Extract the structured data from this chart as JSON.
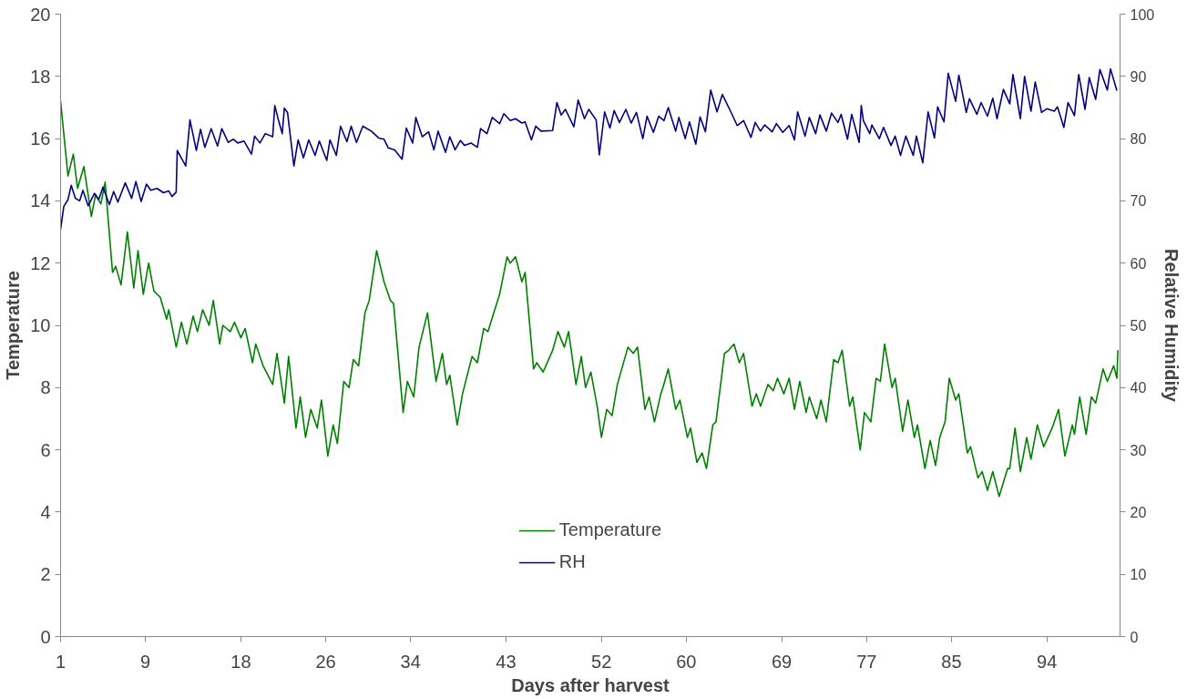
{
  "chart_data": {
    "type": "line",
    "xlabel": "Days after harvest",
    "ylabel": "Temperature",
    "y2label": "Relative Humidity",
    "xlim": [
      1,
      100.9
    ],
    "xticks": [
      1,
      9,
      18,
      26,
      34,
      43,
      52,
      60,
      69,
      77,
      85,
      94
    ],
    "ylim": [
      0,
      20
    ],
    "yticks": [
      0,
      2,
      4,
      6,
      8,
      10,
      12,
      14,
      16,
      18,
      20
    ],
    "y2lim": [
      0,
      100
    ],
    "y2ticks": [
      0,
      10,
      20,
      30,
      40,
      50,
      60,
      70,
      80,
      90,
      100
    ],
    "legend": "bottom",
    "series": [
      {
        "name": "Temperature",
        "color": "#008000",
        "x": [
          1.0,
          1.7,
          2.2,
          2.6,
          3.2,
          3.9,
          4.3,
          4.8,
          5.2,
          5.9,
          6.2,
          6.7,
          7.3,
          7.9,
          8.3,
          8.8,
          9.3,
          9.8,
          10.4,
          11.0,
          11.2,
          11.9,
          12.4,
          12.9,
          13.5,
          13.9,
          14.4,
          15.0,
          15.4,
          16.0,
          16.3,
          17.0,
          17.4,
          18.0,
          18.4,
          19.1,
          19.4,
          20.1,
          21.0,
          21.4,
          22.1,
          22.5,
          23.2,
          23.6,
          24.1,
          24.6,
          25.2,
          25.6,
          26.2,
          26.7,
          27.1,
          27.7,
          28.2,
          28.6,
          29.1,
          29.7,
          30.1,
          30.8,
          31.5,
          32.1,
          32.4,
          33.3,
          33.7,
          34.3,
          34.8,
          35.6,
          36.4,
          37.0,
          37.4,
          37.7,
          38.4,
          38.9,
          39.8,
          40.3,
          40.9,
          41.3,
          42.4,
          43.1,
          43.4,
          43.9,
          44.5,
          44.8,
          45.6,
          45.9,
          46.5,
          47.4,
          47.9,
          48.5,
          48.9,
          49.6,
          50.1,
          50.5,
          51.0,
          51.6,
          52.0,
          52.5,
          53.0,
          53.5,
          54.5,
          55.0,
          55.4,
          56.1,
          56.5,
          57.0,
          57.6,
          57.8,
          58.3,
          59.0,
          59.4,
          60.1,
          60.4,
          61.0,
          61.5,
          61.9,
          62.5,
          62.8,
          63.6,
          64.0,
          64.5,
          65.0,
          65.4,
          66.2,
          66.6,
          67.0,
          67.7,
          68.2,
          68.6,
          69.2,
          69.7,
          70.2,
          70.7,
          71.3,
          71.6,
          72.3,
          72.7,
          73.2,
          73.9,
          74.3,
          74.7,
          75.4,
          75.7,
          76.4,
          76.8,
          77.4,
          77.9,
          78.3,
          78.7,
          79.4,
          79.7,
          80.4,
          80.9,
          81.5,
          81.8,
          82.5,
          83.0,
          83.5,
          83.9,
          84.4,
          84.8,
          85.4,
          85.7,
          86.5,
          86.8,
          87.5,
          87.9,
          88.4,
          88.9,
          89.5,
          90.3,
          90.5,
          91.0,
          91.5,
          92.1,
          92.5,
          93.1,
          93.7,
          94.5,
          95.1,
          95.7,
          96.4,
          96.6,
          97.1,
          97.7,
          98.2,
          98.6,
          99.3,
          99.7,
          100.3,
          100.6,
          100.7
        ],
        "values": [
          17.2,
          14.8,
          15.5,
          14.4,
          15.1,
          13.5,
          14.2,
          13.9,
          14.6,
          11.7,
          11.9,
          11.3,
          13.0,
          11.2,
          12.4,
          11.0,
          12.0,
          11.1,
          10.9,
          10.2,
          10.5,
          9.3,
          10.1,
          9.4,
          10.3,
          9.8,
          10.5,
          10.0,
          10.8,
          9.4,
          10.0,
          9.8,
          10.1,
          9.6,
          9.9,
          8.8,
          9.4,
          8.7,
          8.1,
          9.1,
          7.5,
          9.0,
          6.7,
          7.7,
          6.4,
          7.3,
          6.7,
          7.6,
          5.8,
          6.8,
          6.2,
          8.2,
          8.0,
          8.9,
          8.7,
          10.4,
          10.8,
          12.4,
          11.4,
          10.8,
          10.7,
          7.2,
          8.2,
          7.7,
          9.3,
          10.4,
          8.2,
          9.1,
          8.1,
          8.4,
          6.8,
          7.8,
          9.0,
          8.8,
          9.9,
          9.8,
          11.0,
          12.2,
          12.0,
          12.2,
          11.4,
          11.7,
          8.6,
          8.8,
          8.5,
          9.2,
          9.8,
          9.3,
          9.8,
          8.1,
          9.0,
          8.0,
          8.5,
          7.4,
          6.4,
          7.3,
          7.1,
          8.1,
          9.3,
          9.1,
          9.3,
          7.3,
          7.7,
          6.9,
          7.8,
          8.0,
          8.6,
          7.3,
          7.6,
          6.4,
          6.7,
          5.6,
          5.9,
          5.4,
          6.8,
          6.9,
          9.1,
          9.2,
          9.4,
          8.8,
          9.1,
          7.4,
          7.8,
          7.4,
          8.1,
          7.9,
          8.3,
          7.8,
          8.3,
          7.3,
          8.2,
          7.2,
          7.7,
          7.0,
          7.6,
          6.9,
          8.9,
          8.8,
          9.2,
          7.4,
          7.7,
          6.0,
          7.2,
          6.9,
          8.3,
          8.2,
          9.4,
          8.0,
          8.3,
          6.6,
          7.6,
          6.4,
          6.8,
          5.4,
          6.3,
          5.5,
          6.4,
          6.9,
          8.3,
          7.6,
          7.8,
          5.9,
          6.1,
          5.1,
          5.3,
          4.7,
          5.3,
          4.5,
          5.4,
          5.4,
          6.7,
          5.3,
          6.4,
          5.7,
          6.8,
          6.1,
          6.7,
          7.3,
          5.8,
          6.8,
          6.5,
          7.7,
          6.5,
          7.7,
          7.5,
          8.6,
          8.2,
          8.7,
          8.3,
          9.2
        ]
      },
      {
        "name": "RH",
        "color": "#000080",
        "axis": "y2",
        "x": [
          1.0,
          1.3,
          1.7,
          2.0,
          2.4,
          2.8,
          3.1,
          3.6,
          4.2,
          4.6,
          5.0,
          5.6,
          6.0,
          6.4,
          7.1,
          7.7,
          8.1,
          8.6,
          9.1,
          9.5,
          10.1,
          10.7,
          11.2,
          11.5,
          11.9,
          12.0,
          12.8,
          13.2,
          13.8,
          14.2,
          14.6,
          15.2,
          15.8,
          16.2,
          16.8,
          17.3,
          17.7,
          18.3,
          19.0,
          19.3,
          19.8,
          20.3,
          21.0,
          21.2,
          21.6,
          21.9,
          22.1,
          22.4,
          23.0,
          23.4,
          23.9,
          24.4,
          25.0,
          25.4,
          26.1,
          26.4,
          27.0,
          27.4,
          28.0,
          28.4,
          28.9,
          29.5,
          30.3,
          31.0,
          31.5,
          31.9,
          32.5,
          33.2,
          33.6,
          34.2,
          34.5,
          35.1,
          35.7,
          36.2,
          36.6,
          37.3,
          37.7,
          38.2,
          38.7,
          39.1,
          39.7,
          40.3,
          40.6,
          41.2,
          41.7,
          42.4,
          42.8,
          43.4,
          43.9,
          44.5,
          44.8,
          45.4,
          45.8,
          46.3,
          47.4,
          47.8,
          48.2,
          48.6,
          49.4,
          49.8,
          50.4,
          50.8,
          51.5,
          51.8,
          52.3,
          52.8,
          53.2,
          53.7,
          54.3,
          54.8,
          55.3,
          55.9,
          56.3,
          56.9,
          57.4,
          57.9,
          58.3,
          59.0,
          59.3,
          59.9,
          60.3,
          60.9,
          61.3,
          61.8,
          62.3,
          62.9,
          63.4,
          64.2,
          64.8,
          65.4,
          66.1,
          66.5,
          67.0,
          67.4,
          68.1,
          68.5,
          69.1,
          69.7,
          70.2,
          70.5,
          71.2,
          71.6,
          72.2,
          72.6,
          73.2,
          73.7,
          74.3,
          74.6,
          75.2,
          75.6,
          76.3,
          76.5,
          76.7,
          77.3,
          77.5,
          78.2,
          78.6,
          79.3,
          79.7,
          80.2,
          80.7,
          81.4,
          81.7,
          82.3,
          82.8,
          83.4,
          83.7,
          84.3,
          84.7,
          85.4,
          85.7,
          86.4,
          86.7,
          87.4,
          87.8,
          88.4,
          88.9,
          89.3,
          89.9,
          90.5,
          90.8,
          91.5,
          91.9,
          92.5,
          92.9,
          93.5,
          94.0,
          94.7,
          95.0,
          95.6,
          96.0,
          96.6,
          97.0,
          97.6,
          98.0,
          98.6,
          99.0,
          99.7,
          100.0,
          100.6
        ],
        "values": [
          65.4,
          69.1,
          70.2,
          72.5,
          70.4,
          70.0,
          71.7,
          69.2,
          71.2,
          70.2,
          72.2,
          69.4,
          71.5,
          69.8,
          72.9,
          70.4,
          73.1,
          69.9,
          72.7,
          71.7,
          72.0,
          71.3,
          71.6,
          70.7,
          71.4,
          78.1,
          75.6,
          83.0,
          78.1,
          81.5,
          78.6,
          81.6,
          78.8,
          81.6,
          79.4,
          79.9,
          79.3,
          79.6,
          77.5,
          80.4,
          79.3,
          80.8,
          80.3,
          85.3,
          82.6,
          80.8,
          84.9,
          84.2,
          75.6,
          79.8,
          76.9,
          79.8,
          77.3,
          79.6,
          76.5,
          79.8,
          77.3,
          82.0,
          79.5,
          82.0,
          79.4,
          82.0,
          81.2,
          80.1,
          79.9,
          78.5,
          78.2,
          76.7,
          81.7,
          79.3,
          83.4,
          80.3,
          81.1,
          78.2,
          81.2,
          77.8,
          80.3,
          78.2,
          79.7,
          78.9,
          79.3,
          78.6,
          81.6,
          80.8,
          83.4,
          82.4,
          84.0,
          82.9,
          83.2,
          82.5,
          82.7,
          79.8,
          82.0,
          81.2,
          81.3,
          85.8,
          83.8,
          84.7,
          81.9,
          86.2,
          83.2,
          84.7,
          83.0,
          77.4,
          84.3,
          81.7,
          84.5,
          82.6,
          84.7,
          82.5,
          84.2,
          80.0,
          83.6,
          81.0,
          83.6,
          82.9,
          85.0,
          81.2,
          83.4,
          80.0,
          82.7,
          79.1,
          83.5,
          81.1,
          87.8,
          84.3,
          87.1,
          84.3,
          82.1,
          82.9,
          80.2,
          82.6,
          81.2,
          82.2,
          81.1,
          82.4,
          81.0,
          82.1,
          79.8,
          84.3,
          80.4,
          83.4,
          80.8,
          83.8,
          81.2,
          84.1,
          82.6,
          83.9,
          79.9,
          83.9,
          79.4,
          85.3,
          82.9,
          80.8,
          82.2,
          80.0,
          81.8,
          78.9,
          80.4,
          77.3,
          80.4,
          77.3,
          80.4,
          76.1,
          84.3,
          80.1,
          85.1,
          82.7,
          90.5,
          86.0,
          90.2,
          84.2,
          86.4,
          83.9,
          85.8,
          83.6,
          86.5,
          83.2,
          87.9,
          85.6,
          90.3,
          83.2,
          90.0,
          84.4,
          89.1,
          84.2,
          84.8,
          84.4,
          85.1,
          81.8,
          85.8,
          83.7,
          90.3,
          84.7,
          89.8,
          86.3,
          91.1,
          87.8,
          91.2,
          87.7
        ]
      }
    ]
  }
}
